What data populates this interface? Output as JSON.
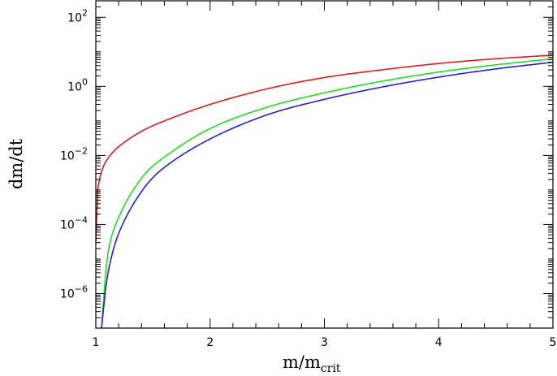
{
  "chart_data": {
    "type": "line",
    "title": "",
    "xlabel": "m/m",
    "xlabel_subscript": "crit",
    "ylabel": "dm/dt",
    "xlim": [
      1,
      5
    ],
    "ylim": [
      1e-07,
      300
    ],
    "y_scale": "log",
    "grid": false,
    "x_ticks": [
      "1",
      "2",
      "3",
      "4",
      "5"
    ],
    "y_ticks": [
      {
        "value": 1e-06,
        "base": "10",
        "exp": "−6"
      },
      {
        "value": 0.0001,
        "base": "10",
        "exp": "−4"
      },
      {
        "value": 0.01,
        "base": "10",
        "exp": "−2"
      },
      {
        "value": 1,
        "base": "10",
        "exp": "0"
      },
      {
        "value": 100,
        "base": "10",
        "exp": "2"
      }
    ],
    "series": [
      {
        "color": "#e8191d",
        "x": [
          1.0,
          1.01,
          1.05,
          1.1,
          1.2,
          1.4,
          1.6,
          2.0,
          2.5,
          3.0,
          3.5,
          4.0,
          4.5,
          5.0
        ],
        "y": [
          3e-05,
          0.0006,
          0.0033,
          0.0077,
          0.018,
          0.05,
          0.1,
          0.3,
          0.85,
          1.8,
          3.0,
          4.6,
          6.3,
          8.0
        ]
      },
      {
        "color": "#20e020",
        "x": [
          1.05,
          1.1,
          1.2,
          1.4,
          1.6,
          2.0,
          2.5,
          3.0,
          3.5,
          4.0,
          4.5,
          5.0
        ],
        "y": [
          1e-07,
          1.1e-05,
          0.00016,
          0.0022,
          0.009,
          0.06,
          0.25,
          0.65,
          1.4,
          2.6,
          4.2,
          6.3
        ]
      },
      {
        "color": "#2020e0",
        "x": [
          1.05,
          1.1,
          1.2,
          1.4,
          1.6,
          2.0,
          2.5,
          3.0,
          3.5,
          4.0,
          4.5,
          5.0
        ],
        "y": [
          1e-07,
          3e-06,
          5.5e-05,
          0.0009,
          0.0045,
          0.03,
          0.15,
          0.42,
          0.95,
          1.85,
          3.2,
          5.0
        ]
      }
    ]
  }
}
